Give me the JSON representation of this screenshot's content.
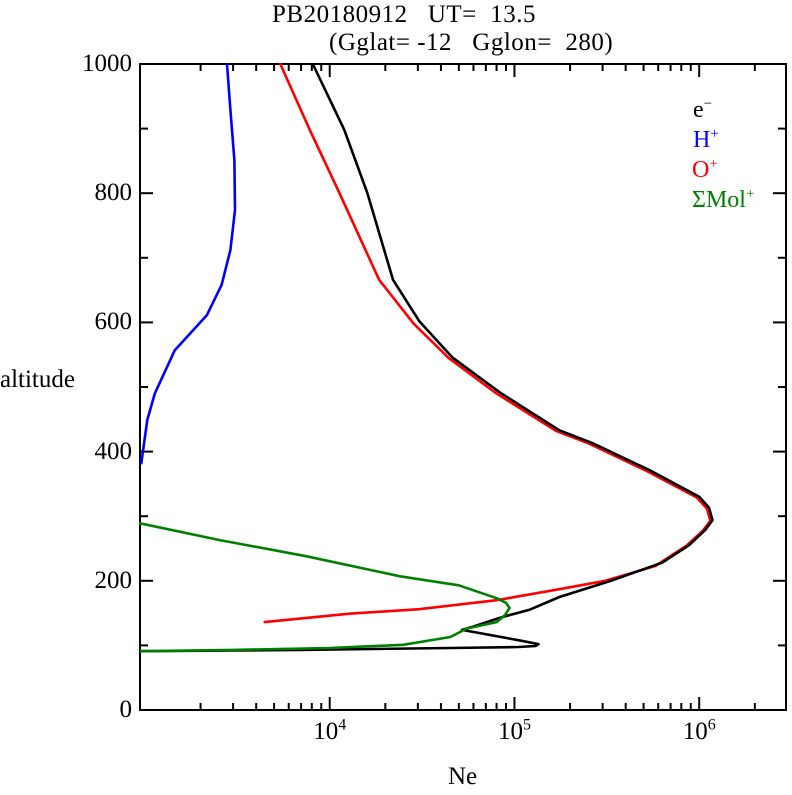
{
  "title_line1": "PB20180912   UT=  13.5",
  "title_line2": "(Gglat= -12   Gglon=  280)",
  "axes": {
    "x_title": "Ne",
    "y_title": "altitude",
    "x_scale": "log",
    "x_min": 940,
    "x_max": 2950000,
    "y_min": 0,
    "y_max": 1000,
    "x_major_ticks": [
      {
        "value": 10000,
        "base": "10",
        "exp": "4"
      },
      {
        "value": 100000,
        "base": "10",
        "exp": "5"
      },
      {
        "value": 1000000,
        "base": "10",
        "exp": "6"
      }
    ],
    "x_minor_mantissas": [
      2,
      3,
      4,
      5,
      6,
      7,
      8,
      9
    ],
    "x_minor_decades": [
      1000,
      10000,
      100000,
      1000000
    ],
    "y_major_ticks": [
      0,
      200,
      400,
      600,
      800,
      1000
    ],
    "y_minor_ticks": [
      100,
      300,
      500,
      700,
      900
    ]
  },
  "legend": [
    {
      "main": "e",
      "sup": "−",
      "color": "#000000"
    },
    {
      "main": "H",
      "sup": "+",
      "color": "#0000ff"
    },
    {
      "main": "O",
      "sup": "+",
      "color": "#ff0000"
    },
    {
      "main": "ΣMol",
      "sup": "+",
      "color": "#008000"
    }
  ],
  "chart_data": {
    "type": "line",
    "title": "PB20180912 UT= 13.5",
    "subtitle": "(Gglat= -12 Gglon= 280)",
    "xlabel": "Ne",
    "ylabel": "altitude",
    "xscale": "log",
    "xlim": [
      940,
      2950000
    ],
    "ylim": [
      0,
      1000
    ],
    "legend_position": "top-right-inside",
    "grid": false,
    "series": [
      {
        "name": "e-",
        "color": "#000000",
        "points_density_altitude": [
          [
            940,
            91
          ],
          [
            6900,
            93
          ],
          [
            45000,
            96
          ],
          [
            105000,
            97.5
          ],
          [
            130000,
            99
          ],
          [
            135000,
            102
          ],
          [
            105000,
            108
          ],
          [
            65000,
            119
          ],
          [
            52000,
            124
          ],
          [
            58000,
            128
          ],
          [
            86000,
            144
          ],
          [
            120000,
            155
          ],
          [
            175000,
            175
          ],
          [
            340000,
            201
          ],
          [
            630000,
            228
          ],
          [
            880000,
            255
          ],
          [
            1080000,
            279
          ],
          [
            1180000,
            294
          ],
          [
            1130000,
            313
          ],
          [
            1000000,
            330
          ],
          [
            540000,
            371
          ],
          [
            265000,
            413
          ],
          [
            175000,
            433
          ],
          [
            83000,
            492
          ],
          [
            46000,
            546
          ],
          [
            30500,
            602
          ],
          [
            22000,
            666
          ],
          [
            16000,
            800
          ],
          [
            12000,
            898
          ],
          [
            8100,
            1000
          ]
        ]
      },
      {
        "name": "O+",
        "color": "#ff0000",
        "points_density_altitude": [
          [
            4450,
            136
          ],
          [
            12800,
            149
          ],
          [
            30500,
            156
          ],
          [
            80000,
            170
          ],
          [
            175000,
            187
          ],
          [
            310000,
            200
          ],
          [
            580000,
            223
          ],
          [
            850000,
            254
          ],
          [
            1050000,
            278
          ],
          [
            1150000,
            293
          ],
          [
            1100000,
            312
          ],
          [
            970000,
            329
          ],
          [
            520000,
            370
          ],
          [
            255000,
            412
          ],
          [
            168000,
            432
          ],
          [
            79000,
            491
          ],
          [
            44000,
            545
          ],
          [
            28500,
            598
          ],
          [
            18500,
            666
          ],
          [
            11300,
            800
          ],
          [
            7800,
            898
          ],
          [
            5400,
            1000
          ]
        ]
      },
      {
        "name": "H+",
        "color": "#0000ff",
        "points_density_altitude": [
          [
            955,
            382
          ],
          [
            1030,
            449
          ],
          [
            1130,
            490
          ],
          [
            1450,
            557
          ],
          [
            2160,
            611
          ],
          [
            2600,
            658
          ],
          [
            2900,
            712
          ],
          [
            3070,
            774
          ],
          [
            3050,
            851
          ],
          [
            2900,
            929
          ],
          [
            2780,
            1000
          ]
        ]
      },
      {
        "name": "Mol+",
        "color": "#008000",
        "points_density_altitude": [
          [
            940,
            289
          ],
          [
            2540,
            263
          ],
          [
            7500,
            238
          ],
          [
            24000,
            207
          ],
          [
            50000,
            193
          ],
          [
            80000,
            173
          ],
          [
            90000,
            166
          ],
          [
            94000,
            158
          ],
          [
            89000,
            147
          ],
          [
            80000,
            136
          ],
          [
            55000,
            126
          ],
          [
            45000,
            113
          ],
          [
            25000,
            101
          ],
          [
            10000,
            96
          ],
          [
            3000,
            93
          ],
          [
            950,
            91
          ]
        ]
      }
    ]
  }
}
